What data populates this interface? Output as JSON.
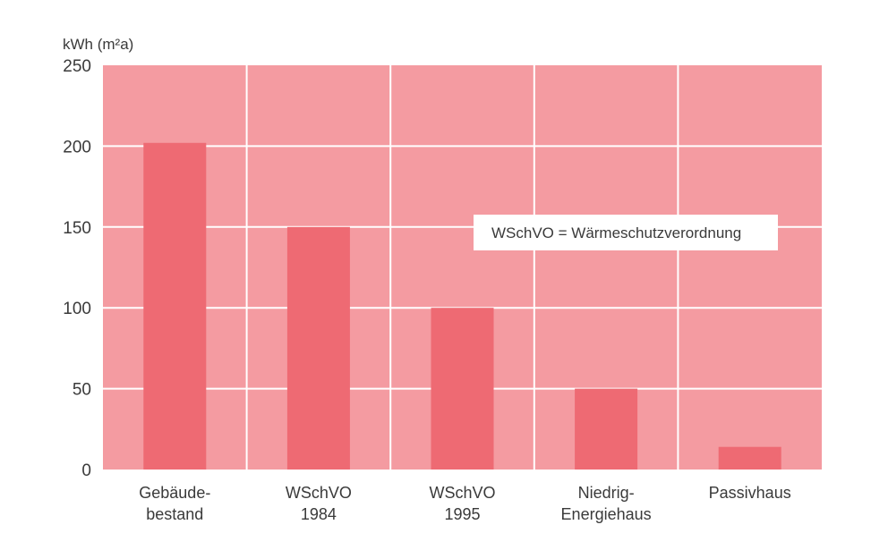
{
  "chart_data": {
    "type": "bar",
    "ylabel": "kWh (m²a)",
    "ylim": [
      0,
      250
    ],
    "yticks": [
      "0",
      "50",
      "100",
      "150",
      "200",
      "250"
    ],
    "ytick_values": [
      0,
      50,
      100,
      150,
      200,
      250
    ],
    "grid": true,
    "categories": [
      [
        "Gebäude-",
        "bestand"
      ],
      [
        "WSchVO",
        "1984"
      ],
      [
        "WSchVO",
        "1995"
      ],
      [
        "Niedrig-",
        "Energiehaus"
      ],
      [
        "Passivhaus"
      ]
    ],
    "values": [
      202,
      150,
      100,
      50,
      14
    ],
    "annotation": "WSchVO = Wärmeschutzverordnung",
    "colors": {
      "background": "#f49ba1",
      "bar": "#ee6a73",
      "grid": "#ffffff",
      "note_box": "#ffffff",
      "text": "#3a3a3a"
    }
  }
}
